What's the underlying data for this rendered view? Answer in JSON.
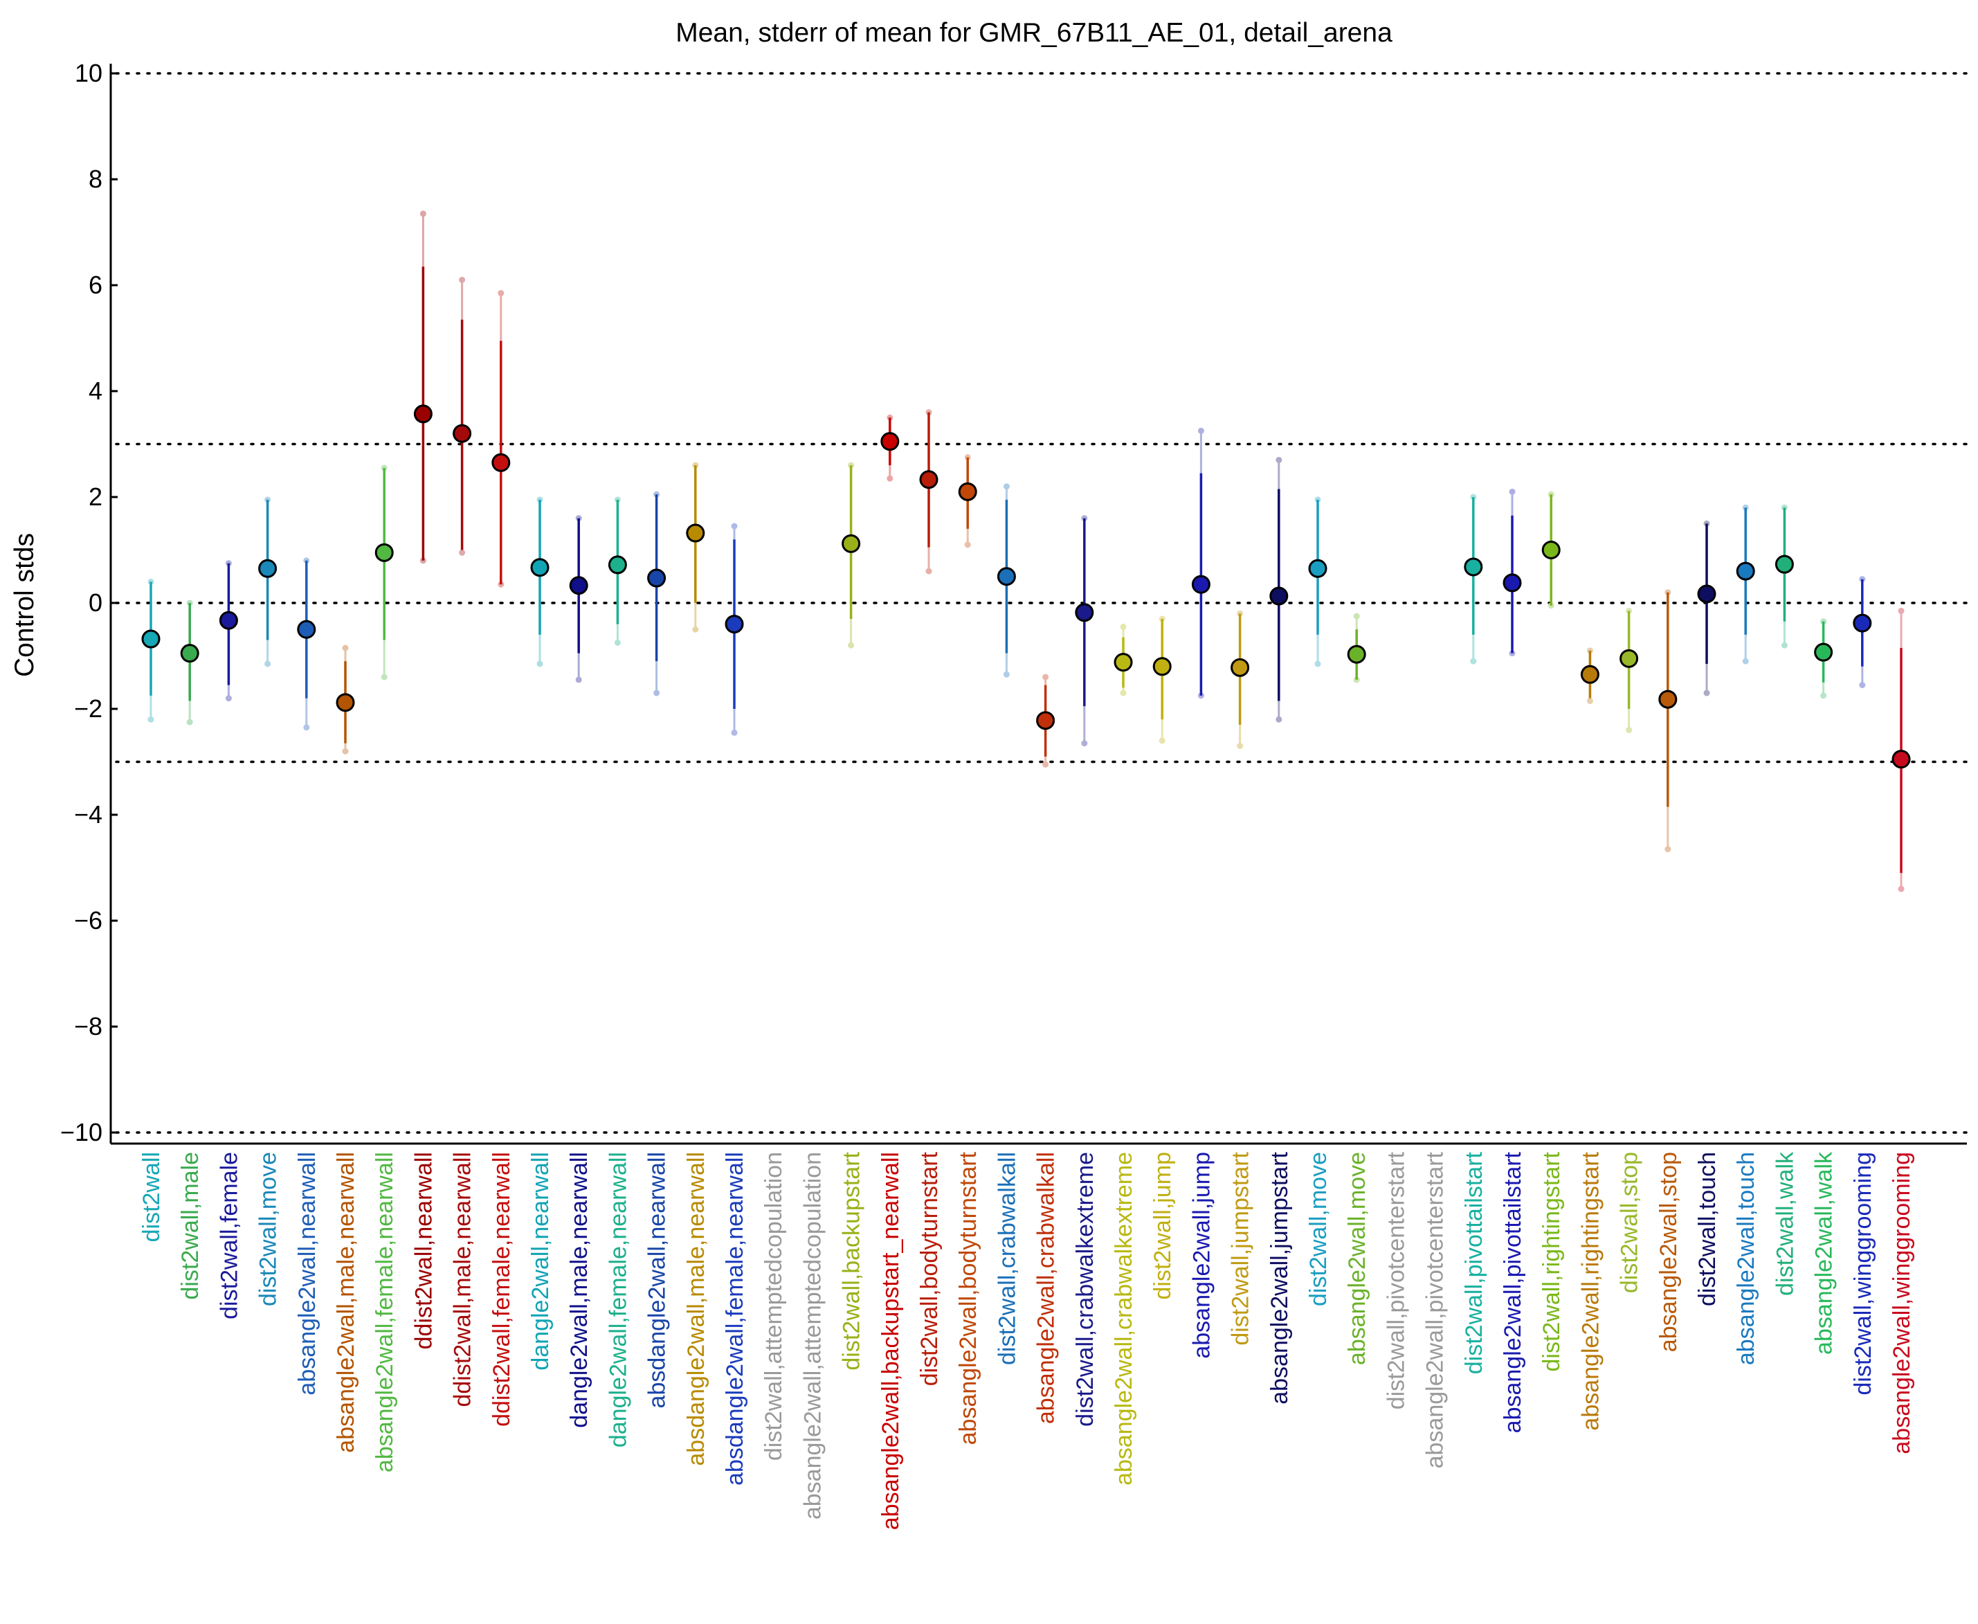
{
  "chart_data": {
    "type": "scatter",
    "title": "Mean, stderr of mean for GMR_67B11_AE_01, detail_arena",
    "xlabel": "",
    "ylabel": "Control stds",
    "ylim": [
      -10.2,
      10.2
    ],
    "yticks": [
      10,
      8,
      6,
      4,
      2,
      0,
      -2,
      -4,
      -6,
      -8,
      -10
    ],
    "ytick_labels": [
      "10",
      "8",
      "6",
      "4",
      "2",
      "0",
      "−2",
      "−4",
      "−6",
      "−8",
      "−10"
    ],
    "reference_lines": [
      10,
      3,
      0,
      -3,
      -10
    ],
    "error_bars": "inner line = stderr of mean, faint outer line = range",
    "points": [
      {
        "label": "dist2wall",
        "mean": -0.68,
        "se_low": -1.75,
        "se_high": 0.4,
        "min": -2.2,
        "max": 0.4,
        "color": "#17a7b5"
      },
      {
        "label": "dist2wall,male",
        "mean": -0.95,
        "se_low": -1.85,
        "se_high": 0.0,
        "min": -2.25,
        "max": 0.0,
        "color": "#3aaa4e"
      },
      {
        "label": "dist2wall,female",
        "mean": -0.33,
        "se_low": -1.55,
        "se_high": 0.75,
        "min": -1.8,
        "max": 0.75,
        "color": "#1a1a9a"
      },
      {
        "label": "dist2wall,move",
        "mean": 0.65,
        "se_low": -0.7,
        "se_high": 1.95,
        "min": -1.15,
        "max": 1.95,
        "color": "#1a88b8"
      },
      {
        "label": "absangle2wall,nearwall",
        "mean": -0.5,
        "se_low": -1.8,
        "se_high": 0.8,
        "min": -2.35,
        "max": 0.8,
        "color": "#1e5db6"
      },
      {
        "label": "absangle2wall,male,nearwall",
        "mean": -1.88,
        "se_low": -2.65,
        "se_high": -1.1,
        "min": -2.8,
        "max": -0.85,
        "color": "#b35400"
      },
      {
        "label": "absangle2wall,female,nearwall",
        "mean": 0.95,
        "se_low": -0.7,
        "se_high": 2.55,
        "min": -1.4,
        "max": 2.55,
        "color": "#52b843"
      },
      {
        "label": "ddist2wall,nearwall",
        "mean": 3.57,
        "se_low": 0.8,
        "se_high": 6.35,
        "min": 0.8,
        "max": 7.35,
        "color": "#9b0000"
      },
      {
        "label": "ddist2wall,male,nearwall",
        "mean": 3.2,
        "se_low": 1.0,
        "se_high": 5.35,
        "min": 0.95,
        "max": 6.1,
        "color": "#a50a0a"
      },
      {
        "label": "ddist2wall,female,nearwall",
        "mean": 2.65,
        "se_low": 0.35,
        "se_high": 4.95,
        "min": 0.35,
        "max": 5.85,
        "color": "#c40f0f"
      },
      {
        "label": "dangle2wall,nearwall",
        "mean": 0.67,
        "se_low": -0.6,
        "se_high": 1.95,
        "min": -1.15,
        "max": 1.95,
        "color": "#12a4b4"
      },
      {
        "label": "dangle2wall,male,nearwall",
        "mean": 0.33,
        "se_low": -0.95,
        "se_high": 1.6,
        "min": -1.45,
        "max": 1.6,
        "color": "#10108a"
      },
      {
        "label": "dangle2wall,female,nearwall",
        "mean": 0.72,
        "se_low": -0.4,
        "se_high": 1.95,
        "min": -0.75,
        "max": 1.95,
        "color": "#1cb08c"
      },
      {
        "label": "absdangle2wall,nearwall",
        "mean": 0.47,
        "se_low": -1.1,
        "se_high": 2.05,
        "min": -1.7,
        "max": 2.05,
        "color": "#1845a8"
      },
      {
        "label": "absdangle2wall,male,nearwall",
        "mean": 1.32,
        "se_low": 0.0,
        "se_high": 2.6,
        "min": -0.5,
        "max": 2.6,
        "color": "#b78a00"
      },
      {
        "label": "absdangle2wall,female,nearwall",
        "mean": -0.4,
        "se_low": -2.0,
        "se_high": 1.2,
        "min": -2.45,
        "max": 1.45,
        "color": "#1a3bbb"
      },
      {
        "label": "dist2wall,attemptedcopulation",
        "mean": null,
        "color": "#9a9a9a"
      },
      {
        "label": "absangle2wall,attemptedcopulation",
        "mean": null,
        "color": "#9a9a9a"
      },
      {
        "label": "dist2wall,backupstart",
        "mean": 1.12,
        "se_low": -0.3,
        "se_high": 2.6,
        "min": -0.8,
        "max": 2.6,
        "color": "#9ab018"
      },
      {
        "label": "absangle2wall,backupstart_nearwall",
        "mean": 3.05,
        "se_low": 2.6,
        "se_high": 3.5,
        "min": 2.35,
        "max": 3.5,
        "color": "#c80000"
      },
      {
        "label": "dist2wall,bodyturnstart",
        "mean": 2.33,
        "se_low": 1.05,
        "se_high": 3.6,
        "min": 0.6,
        "max": 3.6,
        "color": "#b81d0a"
      },
      {
        "label": "absangle2wall,bodyturnstart",
        "mean": 2.1,
        "se_low": 1.4,
        "se_high": 2.75,
        "min": 1.1,
        "max": 2.75,
        "color": "#c04708"
      },
      {
        "label": "dist2wall,crabwalkall",
        "mean": 0.5,
        "se_low": -0.95,
        "se_high": 1.95,
        "min": -1.35,
        "max": 2.2,
        "color": "#1a6fb8"
      },
      {
        "label": "absangle2wall,crabwalkall",
        "mean": -2.22,
        "se_low": -2.9,
        "se_high": -1.55,
        "min": -3.05,
        "max": -1.4,
        "color": "#c0300a"
      },
      {
        "label": "dist2wall,crabwalkextreme",
        "mean": -0.18,
        "se_low": -1.95,
        "se_high": 1.6,
        "min": -2.65,
        "max": 1.6,
        "color": "#1a1a8a"
      },
      {
        "label": "absangle2wall,crabwalkextreme",
        "mean": -1.12,
        "se_low": -1.6,
        "se_high": -0.65,
        "min": -1.7,
        "max": -0.45,
        "color": "#b8b812"
      },
      {
        "label": "dist2wall,jump",
        "mean": -1.2,
        "se_low": -2.2,
        "se_high": -0.3,
        "min": -2.6,
        "max": -0.3,
        "color": "#c0b012"
      },
      {
        "label": "absangle2wall,jump",
        "mean": 0.35,
        "se_low": -1.75,
        "se_high": 2.45,
        "min": -1.75,
        "max": 3.25,
        "color": "#1a1ab0"
      },
      {
        "label": "dist2wall,jumpstart",
        "mean": -1.22,
        "se_low": -2.3,
        "se_high": -0.2,
        "min": -2.7,
        "max": -0.2,
        "color": "#c09a12"
      },
      {
        "label": "absangle2wall,jumpstart",
        "mean": 0.13,
        "se_low": -1.85,
        "se_high": 2.15,
        "min": -2.2,
        "max": 2.7,
        "color": "#0e0e60"
      },
      {
        "label": "dist2wall,move",
        "mean": 0.65,
        "se_low": -0.6,
        "se_high": 1.95,
        "min": -1.15,
        "max": 1.95,
        "color": "#1a9ec0"
      },
      {
        "label": "absangle2wall,move",
        "mean": -0.97,
        "se_low": -1.45,
        "se_high": -0.5,
        "min": -1.45,
        "max": -0.25,
        "color": "#6ab22a"
      },
      {
        "label": "dist2wall,pivotcenterstart",
        "mean": null,
        "color": "#9a9a9a"
      },
      {
        "label": "absangle2wall,pivotcenterstart",
        "mean": null,
        "color": "#9a9a9a"
      },
      {
        "label": "dist2wall,pivottailstart",
        "mean": 0.68,
        "se_low": -0.6,
        "se_high": 2.0,
        "min": -1.1,
        "max": 2.0,
        "color": "#18b0a0"
      },
      {
        "label": "absangle2wall,pivottailstart",
        "mean": 0.38,
        "se_low": -0.95,
        "se_high": 1.65,
        "min": -0.95,
        "max": 2.1,
        "color": "#1a1ab0"
      },
      {
        "label": "dist2wall,rightingstart",
        "mean": 1.0,
        "se_low": -0.05,
        "se_high": 2.05,
        "min": -0.05,
        "max": 2.05,
        "color": "#7ab81a"
      },
      {
        "label": "absangle2wall,rightingstart",
        "mean": -1.35,
        "se_low": -1.8,
        "se_high": -0.9,
        "min": -1.85,
        "max": -0.9,
        "color": "#b87a0a"
      },
      {
        "label": "dist2wall,stop",
        "mean": -1.05,
        "se_low": -2.0,
        "se_high": -0.15,
        "min": -2.4,
        "max": -0.15,
        "color": "#98b82a"
      },
      {
        "label": "absangle2wall,stop",
        "mean": -1.82,
        "se_low": -3.85,
        "se_high": 0.2,
        "min": -4.65,
        "max": 0.2,
        "color": "#b85a0a"
      },
      {
        "label": "dist2wall,touch",
        "mean": 0.17,
        "se_low": -1.15,
        "se_high": 1.5,
        "min": -1.7,
        "max": 1.5,
        "color": "#0e0e60"
      },
      {
        "label": "absangle2wall,touch",
        "mean": 0.6,
        "se_low": -0.6,
        "se_high": 1.8,
        "min": -1.1,
        "max": 1.8,
        "color": "#1a7ac0"
      },
      {
        "label": "dist2wall,walk",
        "mean": 0.73,
        "se_low": -0.35,
        "se_high": 1.8,
        "min": -0.8,
        "max": 1.8,
        "color": "#22b07a"
      },
      {
        "label": "absangle2wall,walk",
        "mean": -0.93,
        "se_low": -1.5,
        "se_high": -0.35,
        "min": -1.75,
        "max": -0.35,
        "color": "#28b85a"
      },
      {
        "label": "dist2wall,winggrooming",
        "mean": -0.38,
        "se_low": -1.2,
        "se_high": 0.45,
        "min": -1.55,
        "max": 0.45,
        "color": "#1a2ab8"
      },
      {
        "label": "absangle2wall,winggrooming",
        "mean": -2.95,
        "se_low": -5.1,
        "se_high": -0.85,
        "min": -5.4,
        "max": -0.15,
        "color": "#c80a1e"
      }
    ]
  }
}
